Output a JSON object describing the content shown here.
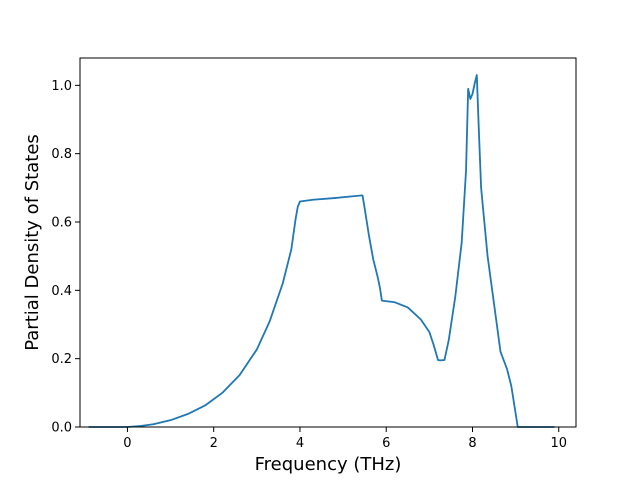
{
  "chart_data": {
    "type": "line",
    "title": "",
    "xlabel": "Frequency (THz)",
    "ylabel": "Partial Density of States",
    "xlim": [
      -1.1,
      10.4
    ],
    "ylim": [
      0,
      1.08
    ],
    "xticks": [
      0,
      2,
      4,
      6,
      8,
      10
    ],
    "yticks": [
      0.0,
      0.2,
      0.4,
      0.6,
      0.8,
      1.0
    ],
    "xtick_labels": [
      "0",
      "2",
      "4",
      "6",
      "8",
      "10"
    ],
    "ytick_labels": [
      "0.0",
      "0.2",
      "0.4",
      "0.6",
      "0.8",
      "1.0"
    ],
    "grid": false,
    "line_color": "#1f77b4",
    "series": [
      {
        "x": [
          -0.9,
          0,
          0.3,
          0.6,
          1.0,
          1.4,
          1.8,
          2.2,
          2.6,
          3.0,
          3.3,
          3.6,
          3.8,
          3.9,
          3.95,
          4.0,
          4.3,
          4.8,
          5.2,
          5.45,
          5.5,
          5.6,
          5.7,
          5.8,
          5.85,
          5.9,
          6.2,
          6.5,
          6.8,
          7.0,
          7.1,
          7.2,
          7.25,
          7.35,
          7.45,
          7.6,
          7.75,
          7.85,
          7.9,
          7.95,
          8.0,
          8.05,
          8.1,
          8.15,
          8.2,
          8.35,
          8.5,
          8.65,
          8.8,
          8.9,
          9.0,
          9.05,
          9.5,
          9.9
        ],
        "y": [
          0,
          0,
          0.003,
          0.008,
          0.02,
          0.038,
          0.063,
          0.1,
          0.152,
          0.227,
          0.31,
          0.42,
          0.52,
          0.61,
          0.645,
          0.66,
          0.665,
          0.67,
          0.675,
          0.678,
          0.64,
          0.56,
          0.49,
          0.44,
          0.41,
          0.37,
          0.365,
          0.35,
          0.315,
          0.278,
          0.24,
          0.196,
          0.195,
          0.196,
          0.255,
          0.38,
          0.54,
          0.75,
          0.99,
          0.96,
          0.975,
          1.005,
          1.03,
          0.86,
          0.7,
          0.5,
          0.36,
          0.22,
          0.17,
          0.12,
          0.04,
          0,
          0,
          0
        ]
      }
    ]
  }
}
